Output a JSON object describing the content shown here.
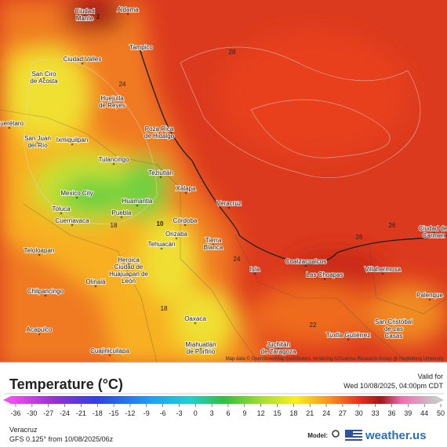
{
  "map": {
    "cities": [
      [
        "Ciudad",
        "Mante"
      ],
      [
        "Aldama"
      ],
      [
        "Tampico"
      ],
      [
        "Ciudad Valles"
      ],
      [
        "San Ciro",
        "de Acosta"
      ],
      [
        "Huejutla",
        "de Reyes"
      ],
      [
        "Poza Rica",
        "de Hidalgo"
      ],
      [
        "Querétaro"
      ],
      [
        "Ixmiquilpan"
      ],
      [
        "San Juan",
        "del Río"
      ],
      [
        "Tulancingo"
      ],
      [
        "Teziutlán"
      ],
      [
        "Xalapa"
      ],
      [
        "Veracruz"
      ],
      [
        "Mexico City"
      ],
      [
        "Huamantla"
      ],
      [
        "Toluca"
      ],
      [
        "Puebla"
      ],
      [
        "Cuernavaca"
      ],
      [
        "Córdoba"
      ],
      [
        "Orizaba"
      ],
      [
        "Tehuacán"
      ],
      [
        "Tierra",
        "Blanca"
      ],
      [
        "Ciudad del",
        "Carmen"
      ],
      [
        "Coatzacoalcos"
      ],
      [
        "Las Choapas"
      ],
      [
        "Villahermosa"
      ],
      [
        "Isla"
      ],
      [
        "Heroica",
        "Ciudad de",
        "Huajuapan de",
        "León"
      ],
      [
        "Teloloapan"
      ],
      [
        "Chilpancingo"
      ],
      [
        "Olinalá"
      ],
      [
        "Palenque"
      ],
      [
        "Oaxaca"
      ],
      [
        "San Cristóbal",
        "de Las",
        "Casas"
      ],
      [
        "Tuxtla Gutiérrez"
      ],
      [
        "Juchitán",
        "de Zaragoza"
      ],
      [
        "Miahuatlán",
        "de Porfirio"
      ],
      [
        "Acapulco"
      ],
      [
        "Cuajinicuilapa"
      ]
    ],
    "contour_labels": [
      "2",
      "28",
      "24",
      "18",
      "10",
      "26",
      "24",
      "18",
      "22",
      "26"
    ],
    "attribution": "Map data © OpenStreetMap contributors, rendering GIScience Research Group @ Heidelberg University"
  },
  "legend": {
    "title": "Temperature (°C)",
    "ticks": [
      -36,
      -30,
      -27,
      -24,
      -21,
      -18,
      -15,
      -12,
      -9,
      -6,
      -3,
      0,
      3,
      6,
      9,
      12,
      15,
      18,
      21,
      24,
      27,
      30,
      33,
      36,
      39,
      44,
      50
    ]
  },
  "valid": {
    "label": "Valid for",
    "time": "Wed 10/08/2025, 04:00pm CDT"
  },
  "footer": {
    "location": "Veracruz",
    "run": "GFS 0.125° from 10/08/2025/06z",
    "model_label": "Model:",
    "brand": "weather.us"
  }
}
